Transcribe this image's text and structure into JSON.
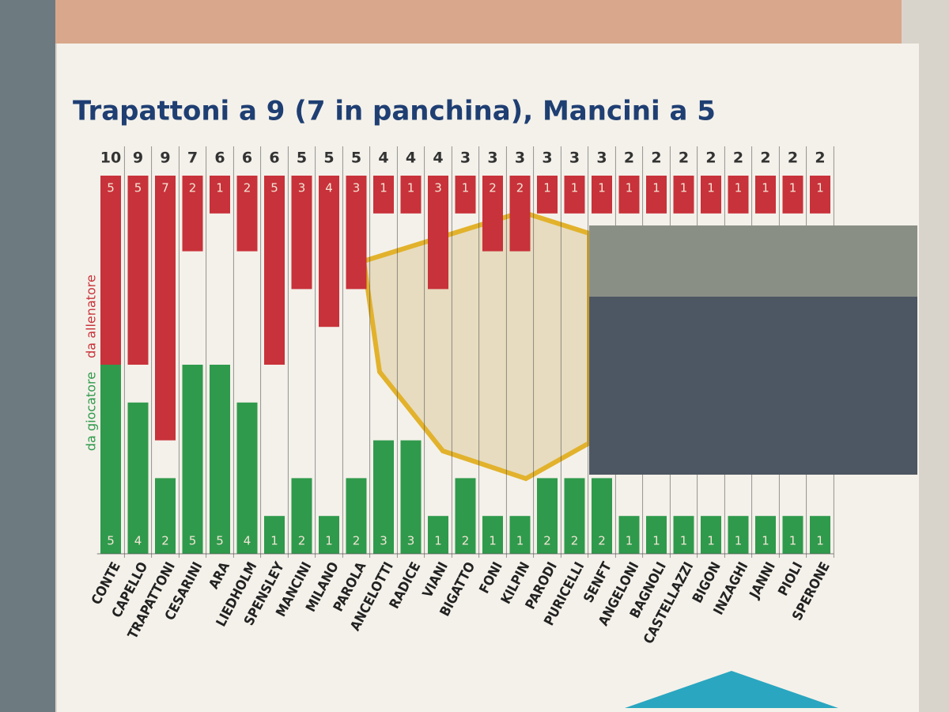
{
  "chart_data": {
    "type": "diverging-bar",
    "title": "Trapattoni a 9 (7 in panchina), Mancini a 5",
    "categories": [
      "CONTE",
      "CAPELLO",
      "TRAPATTONI",
      "CESARINI",
      "ARA",
      "LIEDHOLM",
      "SPENSLEY",
      "MANCINI",
      "MILANO",
      "PAROLA",
      "ANCELOTTI",
      "RADICE",
      "VIANI",
      "BIGATTO",
      "FONI",
      "KILPIN",
      "PARODI",
      "PURICELLI",
      "SENFT",
      "ANGELONI",
      "BAGNOLI",
      "CASTELLAZZI",
      "BIGON",
      "INZAGHI",
      "JANNI",
      "PIOLI",
      "SPERONE"
    ],
    "totals": [
      10,
      9,
      9,
      7,
      6,
      6,
      6,
      5,
      5,
      5,
      4,
      4,
      4,
      3,
      3,
      3,
      3,
      3,
      3,
      2,
      2,
      2,
      2,
      2,
      2,
      2,
      2
    ],
    "series": [
      {
        "name": "da allenatore",
        "color": "#c8323a",
        "values": [
          5,
          5,
          7,
          2,
          1,
          2,
          5,
          3,
          4,
          3,
          1,
          1,
          3,
          1,
          2,
          2,
          1,
          1,
          1,
          1,
          1,
          1,
          1,
          1,
          1,
          1,
          1
        ]
      },
      {
        "name": "da giocatore",
        "color": "#2f9a4c",
        "values": [
          5,
          4,
          2,
          5,
          5,
          4,
          1,
          2,
          1,
          2,
          3,
          3,
          1,
          2,
          1,
          1,
          2,
          2,
          2,
          1,
          1,
          1,
          1,
          1,
          1,
          1,
          1
        ]
      }
    ],
    "highlight_color": "#c8323a",
    "ylim": [
      0,
      10
    ]
  }
}
